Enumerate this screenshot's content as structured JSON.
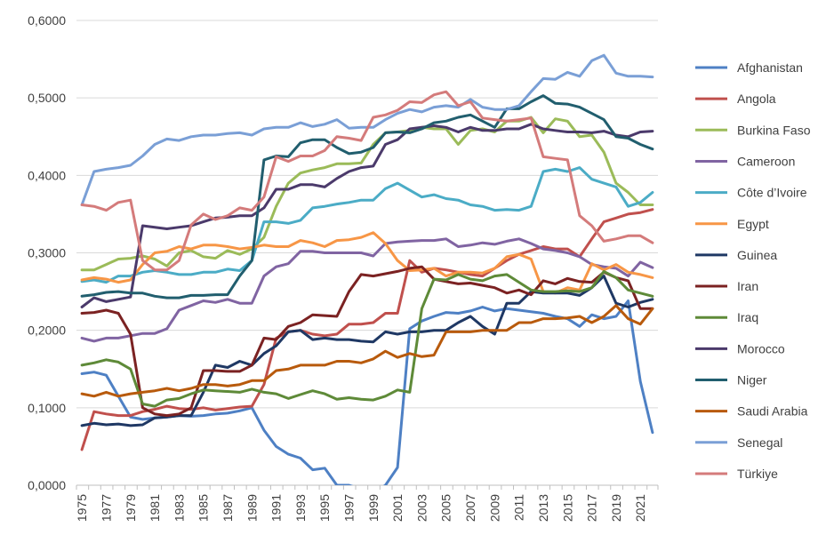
{
  "chart_data": {
    "type": "line",
    "title": "",
    "xlabel": "",
    "ylabel": "",
    "ylim": [
      0,
      0.6
    ],
    "yticks": [
      "0,0000",
      "0,1000",
      "0,2000",
      "0,3000",
      "0,4000",
      "0,5000",
      "0,6000"
    ],
    "ytick_values": [
      0,
      0.1,
      0.2,
      0.3,
      0.4,
      0.5,
      0.6
    ],
    "x": [
      1975,
      1976,
      1977,
      1978,
      1979,
      1980,
      1981,
      1982,
      1983,
      1984,
      1985,
      1986,
      1987,
      1988,
      1989,
      1990,
      1991,
      1992,
      1993,
      1994,
      1995,
      1996,
      1997,
      1998,
      1999,
      2000,
      2001,
      2002,
      2003,
      2004,
      2005,
      2006,
      2007,
      2008,
      2009,
      2010,
      2011,
      2012,
      2013,
      2014,
      2015,
      2016,
      2017,
      2018,
      2019,
      2020,
      2021,
      2022
    ],
    "xticks": [
      "1975",
      "1977",
      "1979",
      "1981",
      "1983",
      "1985",
      "1987",
      "1989",
      "1991",
      "1993",
      "1995",
      "1997",
      "1999",
      "2001",
      "2003",
      "2005",
      "2007",
      "2009",
      "2011",
      "2013",
      "2015",
      "2017",
      "2019",
      "2021"
    ],
    "grid": true,
    "legend_position": "right",
    "series": [
      {
        "name": "Afghanistan",
        "color": "#4e80c4",
        "values": [
          0.144,
          0.146,
          0.142,
          0.115,
          0.088,
          0.085,
          0.087,
          0.088,
          0.09,
          0.089,
          0.09,
          0.092,
          0.093,
          0.096,
          0.1,
          0.071,
          0.05,
          0.04,
          0.035,
          0.02,
          0.022,
          0.0,
          0.0,
          -0.005,
          -0.01,
          0.0,
          0.023,
          0.202,
          0.212,
          0.218,
          0.223,
          0.222,
          0.225,
          0.23,
          0.225,
          0.228,
          0.226,
          0.224,
          0.222,
          0.218,
          0.215,
          0.205,
          0.22,
          0.215,
          0.218,
          0.238,
          0.134,
          0.068
        ]
      },
      {
        "name": "Angola",
        "color": "#c0504d",
        "values": [
          0.046,
          0.095,
          0.092,
          0.09,
          0.09,
          0.095,
          0.098,
          0.102,
          0.099,
          0.098,
          0.1,
          0.097,
          0.099,
          0.101,
          0.102,
          0.13,
          0.19,
          0.198,
          0.2,
          0.195,
          0.193,
          0.195,
          0.208,
          0.208,
          0.21,
          0.222,
          0.222,
          0.29,
          0.275,
          0.28,
          0.278,
          0.275,
          0.272,
          0.27,
          0.28,
          0.29,
          0.298,
          0.303,
          0.308,
          0.305,
          0.305,
          0.295,
          0.318,
          0.34,
          0.345,
          0.35,
          0.352,
          0.356
        ]
      },
      {
        "name": "Burkina Faso",
        "color": "#9bbb59",
        "values": [
          0.278,
          0.278,
          0.285,
          0.292,
          0.293,
          0.296,
          0.292,
          0.283,
          0.3,
          0.303,
          0.295,
          0.293,
          0.303,
          0.298,
          0.305,
          0.32,
          0.36,
          0.39,
          0.403,
          0.407,
          0.41,
          0.415,
          0.415,
          0.416,
          0.44,
          0.455,
          0.456,
          0.458,
          0.462,
          0.46,
          0.46,
          0.44,
          0.458,
          0.46,
          0.456,
          0.47,
          0.47,
          0.475,
          0.455,
          0.473,
          0.47,
          0.45,
          0.452,
          0.43,
          0.39,
          0.378,
          0.362,
          0.362
        ]
      },
      {
        "name": "Cameroon",
        "color": "#8064a2",
        "values": [
          0.19,
          0.186,
          0.19,
          0.19,
          0.193,
          0.196,
          0.196,
          0.202,
          0.226,
          0.232,
          0.238,
          0.236,
          0.24,
          0.235,
          0.235,
          0.27,
          0.282,
          0.286,
          0.302,
          0.302,
          0.3,
          0.3,
          0.3,
          0.3,
          0.296,
          0.312,
          0.314,
          0.315,
          0.316,
          0.316,
          0.318,
          0.308,
          0.31,
          0.313,
          0.311,
          0.315,
          0.318,
          0.312,
          0.305,
          0.303,
          0.3,
          0.295,
          0.285,
          0.282,
          0.28,
          0.27,
          0.288,
          0.281
        ]
      },
      {
        "name": "Côte d’Ivoire",
        "color": "#4bacc6",
        "values": [
          0.263,
          0.265,
          0.262,
          0.27,
          0.27,
          0.275,
          0.277,
          0.275,
          0.272,
          0.272,
          0.275,
          0.275,
          0.279,
          0.277,
          0.29,
          0.34,
          0.34,
          0.338,
          0.342,
          0.358,
          0.36,
          0.363,
          0.365,
          0.368,
          0.368,
          0.383,
          0.39,
          0.381,
          0.372,
          0.375,
          0.37,
          0.368,
          0.362,
          0.36,
          0.355,
          0.356,
          0.355,
          0.36,
          0.405,
          0.408,
          0.405,
          0.41,
          0.395,
          0.39,
          0.385,
          0.36,
          0.365,
          0.378
        ]
      },
      {
        "name": "Egypt",
        "color": "#f79646",
        "values": [
          0.265,
          0.268,
          0.266,
          0.262,
          0.265,
          0.285,
          0.3,
          0.302,
          0.308,
          0.305,
          0.31,
          0.31,
          0.308,
          0.305,
          0.307,
          0.31,
          0.308,
          0.308,
          0.316,
          0.313,
          0.308,
          0.316,
          0.317,
          0.32,
          0.326,
          0.312,
          0.29,
          0.277,
          0.278,
          0.28,
          0.27,
          0.275,
          0.275,
          0.274,
          0.28,
          0.295,
          0.298,
          0.292,
          0.25,
          0.248,
          0.255,
          0.252,
          0.286,
          0.278,
          0.285,
          0.275,
          0.272,
          0.268
        ]
      },
      {
        "name": "Guinea",
        "color": "#1f3864",
        "values": [
          0.077,
          0.08,
          0.078,
          0.079,
          0.077,
          0.078,
          0.087,
          0.088,
          0.09,
          0.09,
          0.12,
          0.155,
          0.152,
          0.16,
          0.155,
          0.17,
          0.18,
          0.198,
          0.2,
          0.188,
          0.19,
          0.188,
          0.188,
          0.186,
          0.185,
          0.198,
          0.195,
          0.198,
          0.198,
          0.2,
          0.2,
          0.21,
          0.218,
          0.205,
          0.195,
          0.235,
          0.235,
          0.25,
          0.248,
          0.248,
          0.248,
          0.245,
          0.255,
          0.27,
          0.235,
          0.23,
          0.236,
          0.24
        ]
      },
      {
        "name": "Iran",
        "color": "#7b2222",
        "values": [
          0.222,
          0.223,
          0.226,
          0.222,
          0.195,
          0.1,
          0.092,
          0.09,
          0.092,
          0.1,
          0.148,
          0.148,
          0.147,
          0.147,
          0.155,
          0.19,
          0.188,
          0.205,
          0.21,
          0.22,
          0.219,
          0.218,
          0.25,
          0.272,
          0.27,
          0.273,
          0.276,
          0.28,
          0.282,
          0.266,
          0.263,
          0.26,
          0.261,
          0.258,
          0.255,
          0.248,
          0.252,
          0.246,
          0.264,
          0.26,
          0.267,
          0.263,
          0.262,
          0.275,
          0.268,
          0.264,
          0.228,
          0.228
        ]
      },
      {
        "name": "Iraq",
        "color": "#5e8a38",
        "values": [
          0.155,
          0.158,
          0.162,
          0.159,
          0.15,
          0.105,
          0.102,
          0.11,
          0.112,
          0.118,
          0.123,
          0.122,
          0.121,
          0.12,
          0.124,
          0.12,
          0.118,
          0.112,
          0.117,
          0.122,
          0.118,
          0.111,
          0.113,
          0.111,
          0.11,
          0.115,
          0.123,
          0.12,
          0.228,
          0.266,
          0.265,
          0.272,
          0.266,
          0.264,
          0.27,
          0.272,
          0.262,
          0.252,
          0.25,
          0.25,
          0.251,
          0.25,
          0.255,
          0.276,
          0.268,
          0.252,
          0.248,
          0.244
        ]
      },
      {
        "name": "Morocco",
        "color": "#4b3a6b",
        "values": [
          0.23,
          0.242,
          0.237,
          0.24,
          0.243,
          0.335,
          0.333,
          0.331,
          0.333,
          0.335,
          0.34,
          0.345,
          0.346,
          0.348,
          0.348,
          0.358,
          0.382,
          0.382,
          0.388,
          0.388,
          0.385,
          0.396,
          0.405,
          0.41,
          0.412,
          0.44,
          0.446,
          0.46,
          0.462,
          0.464,
          0.462,
          0.456,
          0.462,
          0.458,
          0.458,
          0.46,
          0.46,
          0.466,
          0.46,
          0.458,
          0.456,
          0.456,
          0.455,
          0.457,
          0.452,
          0.45,
          0.456,
          0.457
        ]
      },
      {
        "name": "Niger",
        "color": "#215e6e",
        "values": [
          0.244,
          0.246,
          0.249,
          0.25,
          0.248,
          0.248,
          0.244,
          0.242,
          0.242,
          0.245,
          0.245,
          0.246,
          0.246,
          0.27,
          0.29,
          0.42,
          0.425,
          0.424,
          0.442,
          0.446,
          0.446,
          0.436,
          0.428,
          0.43,
          0.436,
          0.455,
          0.456,
          0.455,
          0.46,
          0.468,
          0.47,
          0.475,
          0.478,
          0.47,
          0.462,
          0.486,
          0.486,
          0.495,
          0.503,
          0.493,
          0.492,
          0.488,
          0.48,
          0.472,
          0.45,
          0.448,
          0.44,
          0.434
        ]
      },
      {
        "name": "Saudi Arabia",
        "color": "#b85a0c",
        "values": [
          0.118,
          0.115,
          0.12,
          0.115,
          0.118,
          0.12,
          0.122,
          0.125,
          0.122,
          0.125,
          0.13,
          0.13,
          0.128,
          0.13,
          0.135,
          0.135,
          0.148,
          0.15,
          0.155,
          0.155,
          0.155,
          0.16,
          0.16,
          0.158,
          0.163,
          0.173,
          0.165,
          0.17,
          0.166,
          0.168,
          0.198,
          0.198,
          0.198,
          0.2,
          0.2,
          0.2,
          0.21,
          0.21,
          0.215,
          0.215,
          0.216,
          0.218,
          0.21,
          0.218,
          0.232,
          0.215,
          0.208,
          0.228
        ]
      },
      {
        "name": "Senegal",
        "color": "#7a9fd6",
        "values": [
          0.362,
          0.405,
          0.408,
          0.41,
          0.413,
          0.425,
          0.44,
          0.447,
          0.445,
          0.45,
          0.452,
          0.452,
          0.454,
          0.455,
          0.452,
          0.46,
          0.462,
          0.462,
          0.468,
          0.463,
          0.466,
          0.472,
          0.461,
          0.462,
          0.462,
          0.472,
          0.48,
          0.485,
          0.482,
          0.488,
          0.49,
          0.488,
          0.498,
          0.488,
          0.485,
          0.485,
          0.49,
          0.508,
          0.525,
          0.524,
          0.533,
          0.528,
          0.548,
          0.555,
          0.532,
          0.528,
          0.528,
          0.527
        ]
      },
      {
        "name": "Türkiye",
        "color": "#d47b7b",
        "values": [
          0.362,
          0.36,
          0.355,
          0.365,
          0.368,
          0.29,
          0.278,
          0.278,
          0.29,
          0.336,
          0.35,
          0.343,
          0.348,
          0.358,
          0.355,
          0.372,
          0.424,
          0.418,
          0.425,
          0.425,
          0.432,
          0.45,
          0.448,
          0.445,
          0.475,
          0.478,
          0.484,
          0.495,
          0.494,
          0.504,
          0.508,
          0.49,
          0.495,
          0.474,
          0.472,
          0.47,
          0.472,
          0.474,
          0.424,
          0.422,
          0.42,
          0.348,
          0.335,
          0.315,
          0.318,
          0.322,
          0.322,
          0.313
        ]
      }
    ]
  }
}
